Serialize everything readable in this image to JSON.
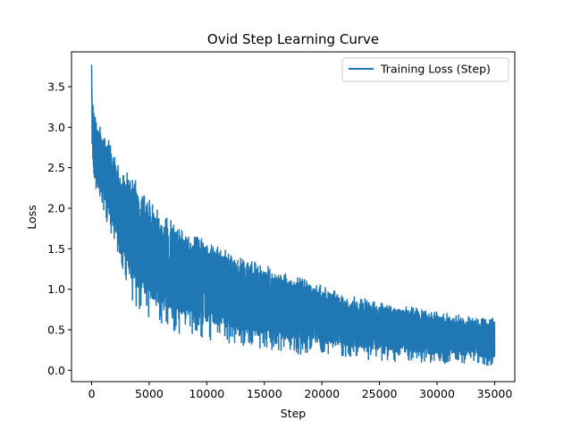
{
  "chart_data": {
    "type": "line",
    "title": "Ovid Step Learning Curve",
    "xlabel": "Step",
    "ylabel": "Loss",
    "xlim": [
      -1750,
      36750
    ],
    "ylim": [
      -0.14,
      3.93
    ],
    "xticks": [
      0,
      5000,
      10000,
      15000,
      20000,
      25000,
      30000,
      35000
    ],
    "yticks": [
      0.0,
      0.5,
      1.0,
      1.5,
      2.0,
      2.5,
      3.0,
      3.5
    ],
    "grid": false,
    "legend_position": "top-right",
    "series": [
      {
        "name": "Training Loss (Step)",
        "color": "#1f77b4",
        "x": [
          0,
          100,
          250,
          500,
          1000,
          1500,
          2000,
          2500,
          3000,
          3500,
          4000,
          5000,
          6000,
          7000,
          8000,
          9000,
          10000,
          11000,
          12000,
          13000,
          14000,
          15000,
          16000,
          17000,
          18000,
          19000,
          20000,
          21000,
          22000,
          23000,
          24000,
          25000,
          26000,
          27000,
          28000,
          29000,
          30000,
          31000,
          32000,
          33000,
          34000,
          35000
        ],
        "upper": [
          3.77,
          3.35,
          3.25,
          3.05,
          2.95,
          2.85,
          2.65,
          2.5,
          2.45,
          2.55,
          2.3,
          2.1,
          1.95,
          1.85,
          1.7,
          1.65,
          1.6,
          1.55,
          1.45,
          1.4,
          1.35,
          1.3,
          1.25,
          1.2,
          1.15,
          1.1,
          1.05,
          1.0,
          0.95,
          0.9,
          0.88,
          0.85,
          0.82,
          0.8,
          0.78,
          0.75,
          0.72,
          0.7,
          0.68,
          0.67,
          0.65,
          0.64
        ],
        "lower": [
          2.5,
          2.3,
          2.2,
          2.1,
          1.95,
          1.75,
          1.5,
          1.35,
          1.1,
          0.8,
          0.75,
          0.65,
          0.55,
          0.5,
          0.42,
          0.4,
          0.38,
          0.35,
          0.32,
          0.3,
          0.28,
          0.27,
          0.25,
          0.22,
          0.2,
          0.19,
          0.18,
          0.17,
          0.15,
          0.14,
          0.13,
          0.12,
          0.11,
          0.1,
          0.1,
          0.09,
          0.08,
          0.08,
          0.07,
          0.07,
          0.06,
          0.05
        ]
      }
    ]
  }
}
